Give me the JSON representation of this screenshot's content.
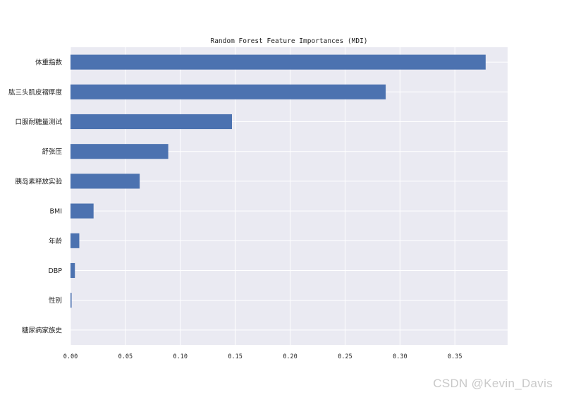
{
  "chart_data": {
    "type": "bar",
    "orientation": "horizontal",
    "title": "Random Forest Feature Importances (MDI)",
    "xlabel": "",
    "ylabel": "",
    "categories": [
      "体重指数",
      "肱三头肌皮褶厚度",
      "口服耐糖量测试",
      "舒张压",
      "胰岛素释放实验",
      "BMI",
      "年龄",
      "DBP",
      "性别",
      "糖尿病家族史"
    ],
    "values": [
      0.378,
      0.287,
      0.147,
      0.089,
      0.063,
      0.021,
      0.008,
      0.004,
      0.001,
      0.0
    ],
    "xlim": [
      0.0,
      0.398
    ],
    "xticks": [
      0.0,
      0.05,
      0.1,
      0.15,
      0.2,
      0.25,
      0.3,
      0.35
    ],
    "xtick_labels": [
      "0.00",
      "0.05",
      "0.10",
      "0.15",
      "0.20",
      "0.25",
      "0.30",
      "0.35"
    ],
    "grid": true,
    "bar_color": "#4c72b0",
    "background_color": "#eaeaf2",
    "grid_color": "#ffffff"
  },
  "watermark": "CSDN @Kevin_Davis"
}
